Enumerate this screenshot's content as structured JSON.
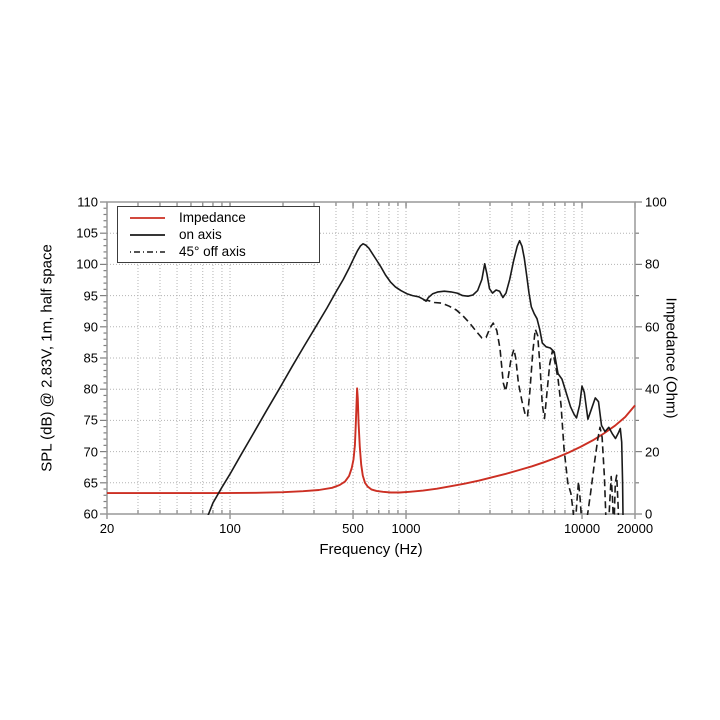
{
  "chart_data": {
    "type": "line",
    "title": "",
    "xlabel": "Frequency (Hz)",
    "ylabel_left": "SPL (dB) @ 2.83V, 1m, half space",
    "ylabel_right": "Impedance (Ohm)",
    "x_scale": "log",
    "x_range": [
      20,
      20000
    ],
    "y_left_range": [
      60,
      110
    ],
    "y_right_range": [
      0,
      100
    ],
    "x_tick_labels": [
      "20",
      "100",
      "500",
      "1000",
      "10000",
      "20000"
    ],
    "x_tick_values": [
      20,
      100,
      500,
      1000,
      10000,
      20000
    ],
    "y_left_ticks": [
      60,
      65,
      70,
      75,
      80,
      85,
      90,
      95,
      100,
      105,
      110
    ],
    "y_right_ticks": [
      0,
      20,
      40,
      60,
      80,
      100
    ],
    "grid": "dotted log-log grid on",
    "legend_position": "top-left inside plot",
    "colors": {
      "impedance": "#cc2f23",
      "on_axis": "#1a1a1a",
      "off_axis": "#1a1a1a",
      "frame": "#999999",
      "grid": "#b3b3b3",
      "tick": "#808080",
      "text": "#000000"
    },
    "series": [
      {
        "name": "Impedance",
        "axis": "right",
        "unit": "Ohm",
        "style": "solid",
        "color_key": "impedance",
        "points": [
          [
            20,
            6.7
          ],
          [
            50,
            6.7
          ],
          [
            90,
            6.7
          ],
          [
            140,
            6.8
          ],
          [
            200,
            7.0
          ],
          [
            260,
            7.3
          ],
          [
            320,
            7.7
          ],
          [
            380,
            8.4
          ],
          [
            420,
            9.3
          ],
          [
            450,
            10.4
          ],
          [
            475,
            12.2
          ],
          [
            492,
            14.8
          ],
          [
            503,
            17.5
          ],
          [
            512,
            22
          ],
          [
            518,
            28
          ],
          [
            523,
            35
          ],
          [
            527,
            40.3
          ],
          [
            532,
            37
          ],
          [
            538,
            29
          ],
          [
            546,
            21.5
          ],
          [
            556,
            15.8
          ],
          [
            568,
            12.3
          ],
          [
            585,
            10.0
          ],
          [
            605,
            8.8
          ],
          [
            635,
            7.9
          ],
          [
            680,
            7.4
          ],
          [
            740,
            7.1
          ],
          [
            820,
            6.9
          ],
          [
            920,
            6.9
          ],
          [
            1050,
            7.1
          ],
          [
            1250,
            7.5
          ],
          [
            1500,
            8.1
          ],
          [
            1800,
            8.9
          ],
          [
            2150,
            9.7
          ],
          [
            2600,
            10.7
          ],
          [
            3100,
            11.8
          ],
          [
            3700,
            12.9
          ],
          [
            4400,
            14.1
          ],
          [
            5200,
            15.3
          ],
          [
            6100,
            16.6
          ],
          [
            7200,
            18.1
          ],
          [
            8400,
            19.7
          ],
          [
            9800,
            21.5
          ],
          [
            11500,
            23.6
          ],
          [
            13300,
            25.8
          ],
          [
            15400,
            28.3
          ],
          [
            17600,
            31.1
          ],
          [
            20000,
            34.8
          ]
        ]
      },
      {
        "name": "on axis",
        "axis": "left",
        "unit": "dB",
        "style": "solid",
        "color_key": "on_axis",
        "points": [
          [
            72,
            58.5
          ],
          [
            80,
            61.8
          ],
          [
            90,
            64.3
          ],
          [
            100,
            66.4
          ],
          [
            115,
            69.4
          ],
          [
            135,
            72.8
          ],
          [
            160,
            76.4
          ],
          [
            190,
            80.0
          ],
          [
            225,
            83.6
          ],
          [
            265,
            87.0
          ],
          [
            310,
            90.2
          ],
          [
            355,
            93.0
          ],
          [
            400,
            95.6
          ],
          [
            440,
            97.6
          ],
          [
            475,
            99.4
          ],
          [
            505,
            101.0
          ],
          [
            530,
            102.2
          ],
          [
            552,
            103.0
          ],
          [
            570,
            103.3
          ],
          [
            590,
            103.1
          ],
          [
            615,
            102.6
          ],
          [
            645,
            101.7
          ],
          [
            680,
            100.7
          ],
          [
            720,
            99.6
          ],
          [
            765,
            98.3
          ],
          [
            815,
            97.2
          ],
          [
            870,
            96.4
          ],
          [
            935,
            95.8
          ],
          [
            1010,
            95.3
          ],
          [
            1090,
            95.0
          ],
          [
            1180,
            94.8
          ],
          [
            1255,
            94.4
          ],
          [
            1300,
            94.1
          ],
          [
            1340,
            94.7
          ],
          [
            1420,
            95.3
          ],
          [
            1520,
            95.6
          ],
          [
            1650,
            95.7
          ],
          [
            1800,
            95.6
          ],
          [
            1950,
            95.4
          ],
          [
            2100,
            95.0
          ],
          [
            2250,
            94.9
          ],
          [
            2400,
            95.1
          ],
          [
            2550,
            95.8
          ],
          [
            2700,
            97.6
          ],
          [
            2800,
            100.1
          ],
          [
            2880,
            98.5
          ],
          [
            2980,
            96.1
          ],
          [
            3100,
            95.4
          ],
          [
            3250,
            95.9
          ],
          [
            3400,
            95.7
          ],
          [
            3550,
            94.7
          ],
          [
            3700,
            95.4
          ],
          [
            3880,
            97.6
          ],
          [
            4080,
            100.5
          ],
          [
            4280,
            102.9
          ],
          [
            4420,
            103.8
          ],
          [
            4560,
            102.9
          ],
          [
            4700,
            101.0
          ],
          [
            4850,
            98.2
          ],
          [
            5000,
            95.4
          ],
          [
            5150,
            93.2
          ],
          [
            5350,
            92.1
          ],
          [
            5550,
            91.3
          ],
          [
            5750,
            89.6
          ],
          [
            5950,
            87.4
          ],
          [
            6250,
            86.8
          ],
          [
            6600,
            86.6
          ],
          [
            6950,
            86.0
          ],
          [
            7300,
            82.5
          ],
          [
            7700,
            81.6
          ],
          [
            8100,
            79.6
          ],
          [
            8600,
            77.2
          ],
          [
            9000,
            76.0
          ],
          [
            9300,
            75.4
          ],
          [
            9700,
            77.5
          ],
          [
            10000,
            80.5
          ],
          [
            10300,
            79.5
          ],
          [
            10800,
            75.2
          ],
          [
            11300,
            76.8
          ],
          [
            11900,
            78.6
          ],
          [
            12400,
            78.0
          ],
          [
            12900,
            74.2
          ],
          [
            13500,
            73.2
          ],
          [
            14200,
            73.9
          ],
          [
            14900,
            72.8
          ],
          [
            15500,
            72.1
          ],
          [
            16100,
            73.0
          ],
          [
            16500,
            73.7
          ],
          [
            16800,
            71.5
          ],
          [
            17000,
            65
          ],
          [
            17150,
            57
          ]
        ]
      },
      {
        "name": "45° off axis",
        "axis": "left",
        "unit": "dB",
        "style": "dashed",
        "color_key": "off_axis",
        "points": [
          [
            1255,
            94.3
          ],
          [
            1340,
            94.2
          ],
          [
            1450,
            93.9
          ],
          [
            1600,
            93.8
          ],
          [
            1760,
            93.3
          ],
          [
            1930,
            92.7
          ],
          [
            2100,
            91.8
          ],
          [
            2300,
            90.6
          ],
          [
            2500,
            89.3
          ],
          [
            2700,
            88.2
          ],
          [
            2850,
            88.3
          ],
          [
            3000,
            89.8
          ],
          [
            3130,
            90.6
          ],
          [
            3280,
            89.4
          ],
          [
            3420,
            86.5
          ],
          [
            3570,
            81.0
          ],
          [
            3680,
            79.7
          ],
          [
            3800,
            81.8
          ],
          [
            3950,
            84.8
          ],
          [
            4100,
            86.4
          ],
          [
            4200,
            85.0
          ],
          [
            4350,
            81.0
          ],
          [
            4550,
            78.2
          ],
          [
            4750,
            76.0
          ],
          [
            4900,
            75.6
          ],
          [
            5050,
            79.5
          ],
          [
            5250,
            86.0
          ],
          [
            5430,
            89.6
          ],
          [
            5600,
            88.6
          ],
          [
            5780,
            83.5
          ],
          [
            5950,
            77.5
          ],
          [
            6120,
            75.3
          ],
          [
            6300,
            79.0
          ],
          [
            6550,
            84.0
          ],
          [
            6800,
            86.2
          ],
          [
            7050,
            84.0
          ],
          [
            7300,
            81.7
          ],
          [
            7600,
            77.5
          ],
          [
            7900,
            70.5
          ],
          [
            8300,
            65.0
          ],
          [
            8650,
            63.3
          ],
          [
            8900,
            60.5
          ],
          [
            9100,
            57.0
          ],
          [
            9350,
            62.0
          ],
          [
            9550,
            65.2
          ],
          [
            9750,
            62.5
          ],
          [
            10000,
            58.0
          ],
          [
            10300,
            56.0
          ],
          [
            10700,
            59.5
          ],
          [
            11200,
            63.5
          ],
          [
            11800,
            68.5
          ],
          [
            12300,
            72.0
          ],
          [
            12650,
            73.9
          ],
          [
            13000,
            72.3
          ],
          [
            13400,
            66.0
          ],
          [
            13700,
            58.5
          ],
          [
            14000,
            55.0
          ],
          [
            14350,
            61.5
          ],
          [
            14650,
            66.0
          ],
          [
            14900,
            62.5
          ],
          [
            15150,
            57.0
          ],
          [
            15450,
            65.0
          ],
          [
            15750,
            66.2
          ],
          [
            16050,
            61.0
          ],
          [
            16250,
            55.0
          ]
        ]
      }
    ]
  }
}
